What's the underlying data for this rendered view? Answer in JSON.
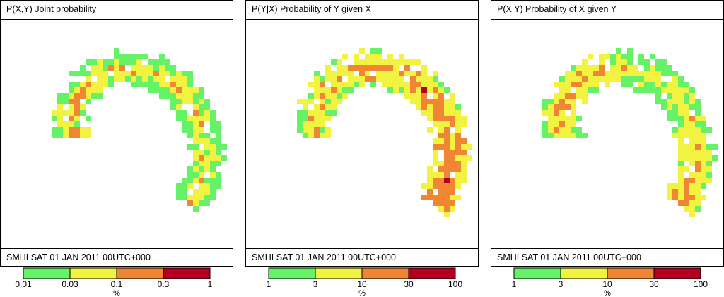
{
  "colors": {
    "class_1": "#66f266",
    "class_2": "#f2f240",
    "class_3": "#f08533",
    "class_4": "#b3001f"
  },
  "chart_data": [
    {
      "type": "heatmap",
      "title": "P(X,Y) Joint probability",
      "footer": "SMHI SAT 01 JAN 2011 00UTC+000",
      "legend": {
        "ticks": [
          "0.01",
          "0.03",
          "0.1",
          "0.3",
          "1"
        ],
        "unit": "%",
        "colors": [
          "#66f266",
          "#f2f240",
          "#f08533",
          "#b3001f"
        ]
      },
      "pattern": "spiral, inner core highest class"
    },
    {
      "type": "heatmap",
      "title": "P(Y|X) Probability of Y given X",
      "footer": "SMHI SAT 01 JAN 2011 00UTC+000",
      "legend": {
        "ticks": [
          "1",
          "3",
          "10",
          "30",
          "100"
        ],
        "unit": "%",
        "colors": [
          "#66f266",
          "#f2f240",
          "#f08533",
          "#b3001f"
        ]
      },
      "pattern": "spiral, tail highest class"
    },
    {
      "type": "heatmap",
      "title": "P(X|Y) Probability of X given Y",
      "footer": "SMHI SAT 01 JAN 2011 00UTC+000",
      "legend": {
        "ticks": [
          "1",
          "3",
          "10",
          "30",
          "100"
        ],
        "unit": "%",
        "colors": [
          "#66f266",
          "#f2f240",
          "#f08533",
          "#b3001f"
        ]
      },
      "pattern": "spiral, mostly middle classes"
    }
  ]
}
